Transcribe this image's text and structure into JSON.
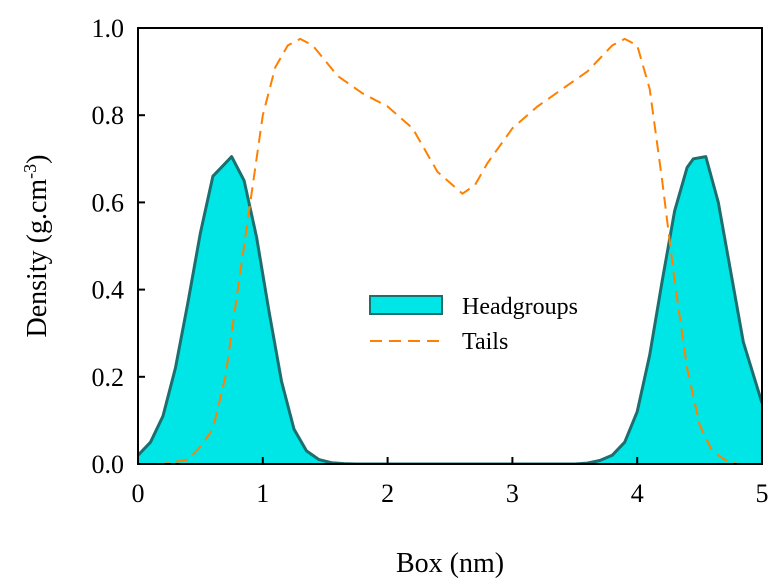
{
  "chart_data": {
    "type": "area",
    "xlabel": "Box (nm)",
    "ylabel": "Density (g.cm",
    "ylabel_sup": "-3",
    "ylabel_close": ")",
    "xlim": [
      0,
      5
    ],
    "ylim": [
      0,
      1.0
    ],
    "x_ticks": [
      "0",
      "1",
      "2",
      "3",
      "4",
      "5"
    ],
    "y_ticks": [
      "0.0",
      "0.2",
      "0.4",
      "0.6",
      "0.8",
      "1.0"
    ],
    "grid": false,
    "legend_position": "center",
    "series": [
      {
        "name": "Headgroups",
        "style": "filled-area",
        "fill_color": "#00e6e6",
        "line_color": "#1d6e6e",
        "x": [
          0,
          0.1,
          0.2,
          0.3,
          0.4,
          0.5,
          0.6,
          0.7,
          0.75,
          0.85,
          0.95,
          1.05,
          1.15,
          1.25,
          1.35,
          1.45,
          1.55,
          1.65,
          1.75,
          1.9,
          2.5,
          3.0,
          3.5,
          3.6,
          3.7,
          3.8,
          3.9,
          4.0,
          4.1,
          4.2,
          4.3,
          4.4,
          4.45,
          4.55,
          4.65,
          4.75,
          4.85,
          5.0
        ],
        "values": [
          0.02,
          0.05,
          0.11,
          0.22,
          0.37,
          0.53,
          0.66,
          0.69,
          0.705,
          0.65,
          0.52,
          0.35,
          0.19,
          0.08,
          0.03,
          0.01,
          0.003,
          0.001,
          0.0,
          0.0,
          0.0,
          0.0,
          0.0,
          0.002,
          0.008,
          0.02,
          0.05,
          0.12,
          0.25,
          0.42,
          0.58,
          0.68,
          0.7,
          0.705,
          0.6,
          0.44,
          0.28,
          0.14
        ]
      },
      {
        "name": "Tails",
        "style": "dashed-line",
        "line_color": "#ff8000",
        "x": [
          0,
          0.2,
          0.3,
          0.4,
          0.5,
          0.6,
          0.7,
          0.8,
          0.9,
          1.0,
          1.1,
          1.2,
          1.3,
          1.4,
          1.6,
          1.8,
          2.0,
          2.2,
          2.4,
          2.6,
          2.7,
          2.8,
          3.0,
          3.2,
          3.4,
          3.6,
          3.7,
          3.8,
          3.9,
          4.0,
          4.1,
          4.2,
          4.3,
          4.4,
          4.5,
          4.6,
          4.7,
          4.8,
          5.0
        ],
        "values": [
          0.0,
          0.0,
          0.005,
          0.01,
          0.04,
          0.08,
          0.2,
          0.4,
          0.6,
          0.8,
          0.91,
          0.96,
          0.975,
          0.96,
          0.89,
          0.85,
          0.82,
          0.77,
          0.67,
          0.62,
          0.64,
          0.69,
          0.77,
          0.82,
          0.86,
          0.9,
          0.93,
          0.96,
          0.975,
          0.96,
          0.86,
          0.65,
          0.42,
          0.22,
          0.09,
          0.03,
          0.01,
          0.0,
          0.0
        ]
      }
    ]
  }
}
